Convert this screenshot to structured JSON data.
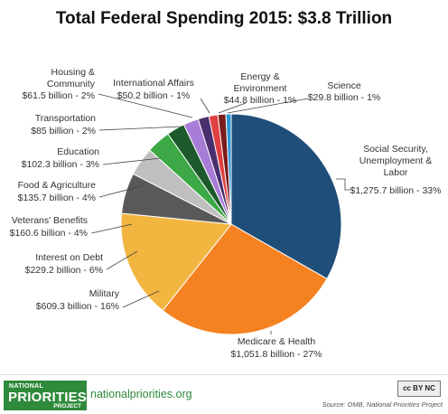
{
  "chart_data": {
    "type": "pie",
    "title": "Total Federal Spending 2015: $3.8 Trillion",
    "slices": [
      {
        "label": "Social Security, Unemployment & Labor",
        "value_text": "$1,275.7 billion - 33%",
        "value": 1275.7,
        "color": "#1f4e79"
      },
      {
        "label": "Medicare & Health",
        "value_text": "$1,051.8 billion - 27%",
        "value": 1051.8,
        "color": "#f58220"
      },
      {
        "label": "Military",
        "value_text": "$609.3 billion - 16%",
        "value": 609.3,
        "color": "#f2b640"
      },
      {
        "label": "Interest on Debt",
        "value_text": "$229.2 billion - 6%",
        "value": 229.2,
        "color": "#595959"
      },
      {
        "label": "Veterans' Benefits",
        "value_text": "$160.6 billion - 4%",
        "value": 160.6,
        "color": "#bfbfbf"
      },
      {
        "label": "Food & Agriculture",
        "value_text": "$135.7 billion - 4%",
        "value": 135.7,
        "color": "#3ca846"
      },
      {
        "label": "Education",
        "value_text": "$102.3 billion - 3%",
        "value": 102.3,
        "color": "#1c5a2c"
      },
      {
        "label": "Transportation",
        "value_text": "$85 billion - 2%",
        "value": 85,
        "color": "#a77dd7"
      },
      {
        "label": "Housing & Community",
        "value_text": "$61.5 billion - 2%",
        "value": 61.5,
        "color": "#4a2f6e"
      },
      {
        "label": "International Affairs",
        "value_text": "$50.2 billion - 1%",
        "value": 50.2,
        "color": "#e04040"
      },
      {
        "label": "Energy & Environment",
        "value_text": "$44.8 billion - 1%",
        "value": 44.8,
        "color": "#7a1c1c"
      },
      {
        "label": "Science",
        "value_text": "$29.8 billion - 1%",
        "value": 29.8,
        "color": "#2e95d3"
      }
    ]
  },
  "footer": {
    "logo_line1": "NATIONAL",
    "logo_line2": "PRIORITIES",
    "logo_line3": "PROJECT",
    "site": "nationalpriorities.org",
    "license_badge": "cc BY NC",
    "source": "Source: OMB, National Priorities Project"
  }
}
